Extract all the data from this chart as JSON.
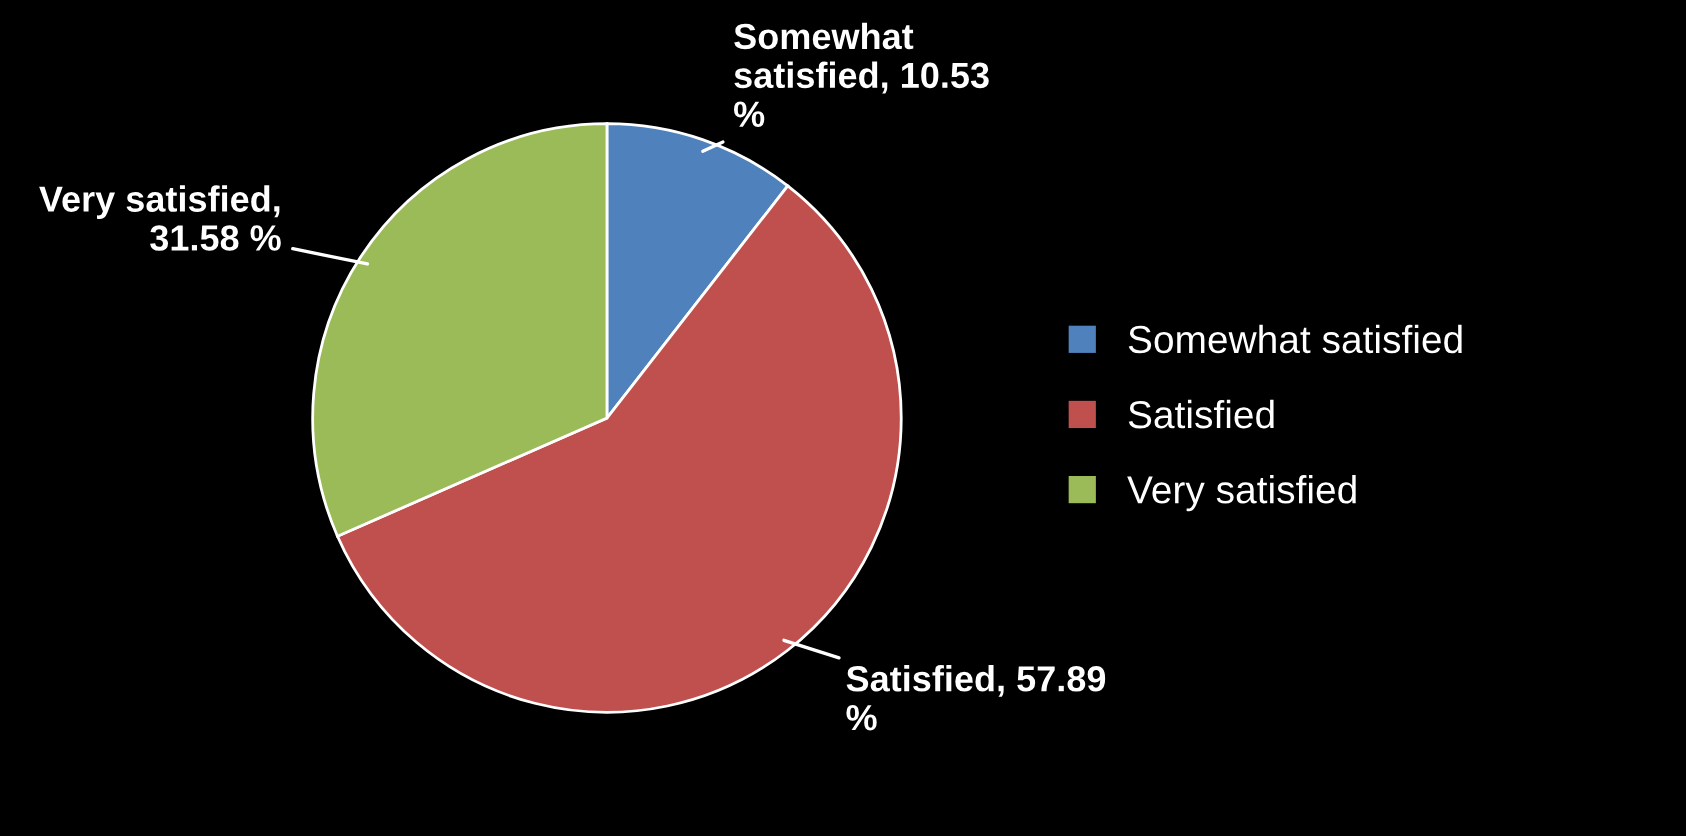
{
  "chart_data": {
    "type": "pie",
    "categories": [
      "Somewhat satisfied",
      "Satisfied",
      "Very satisfied"
    ],
    "values": [
      10.53,
      57.89,
      31.58
    ],
    "colors": [
      "#4f81bd",
      "#c0504d",
      "#9bbb59"
    ],
    "value_labels": [
      "Somewhat satisfied, 10.53 %",
      "Satisfied, 57.89 %",
      "Very satisfied, 31.58 %"
    ],
    "legend": "right"
  }
}
